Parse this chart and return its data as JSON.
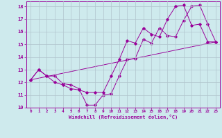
{
  "xlabel": "Windchill (Refroidissement éolien,°C)",
  "bg_color": "#ceeaed",
  "line_color": "#990099",
  "grid_color": "#b0c4cc",
  "xlim": [
    -0.5,
    23.5
  ],
  "ylim": [
    10,
    18.4
  ],
  "xticks": [
    0,
    1,
    2,
    3,
    4,
    5,
    6,
    7,
    8,
    9,
    10,
    11,
    12,
    13,
    14,
    15,
    16,
    17,
    18,
    19,
    20,
    21,
    22,
    23
  ],
  "yticks": [
    10,
    11,
    12,
    13,
    14,
    15,
    16,
    17,
    18
  ],
  "line1_x": [
    0,
    1,
    2,
    3,
    4,
    5,
    6,
    7,
    8,
    9,
    10,
    11,
    12,
    13,
    14,
    15,
    16,
    17,
    18,
    19,
    20,
    21,
    22,
    23
  ],
  "line1_y": [
    12.2,
    13.0,
    12.5,
    12.5,
    11.9,
    11.8,
    11.5,
    10.2,
    10.2,
    11.0,
    11.1,
    12.5,
    13.8,
    13.9,
    15.4,
    15.1,
    16.3,
    15.7,
    15.6,
    16.9,
    18.0,
    18.1,
    16.6,
    15.2
  ],
  "line2_x": [
    0,
    1,
    2,
    3,
    4,
    5,
    6,
    7,
    8,
    9,
    10,
    11,
    12,
    13,
    14,
    15,
    16,
    17,
    18,
    19,
    20,
    21,
    22,
    23
  ],
  "line2_y": [
    12.2,
    13.0,
    12.5,
    12.0,
    11.8,
    11.5,
    11.4,
    11.2,
    11.2,
    11.2,
    12.5,
    13.8,
    15.3,
    15.1,
    16.3,
    15.8,
    15.6,
    17.0,
    18.0,
    18.1,
    16.5,
    16.6,
    15.2,
    15.2
  ],
  "line3_x": [
    0,
    23
  ],
  "line3_y": [
    12.2,
    15.2
  ]
}
